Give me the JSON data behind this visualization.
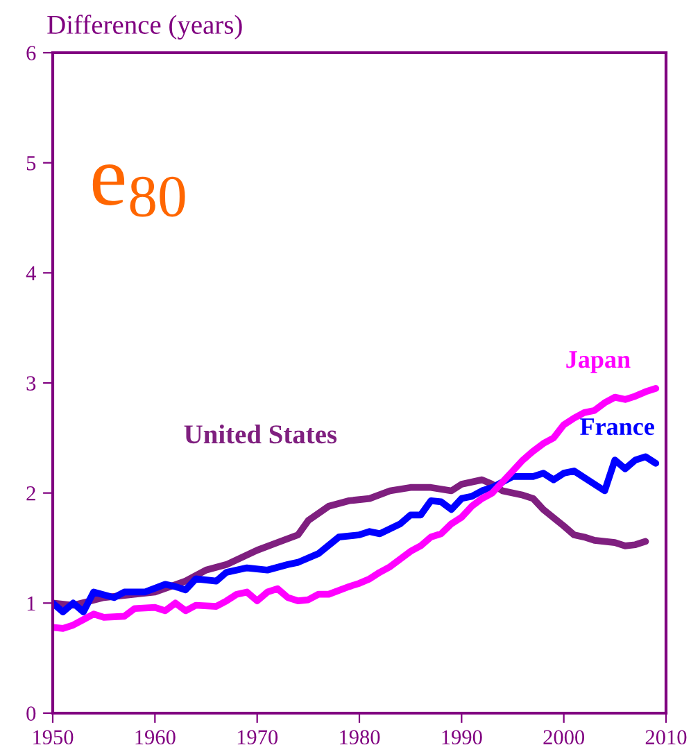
{
  "chart_data": {
    "type": "line",
    "ylabel": "Difference (years)",
    "annotations": [
      "e$_{80}$"
    ],
    "xlim": [
      1950,
      2010
    ],
    "xticks": [
      1950,
      1960,
      1970,
      1980,
      1990,
      2000,
      2010
    ],
    "ylim": [
      0,
      6
    ],
    "yticks": [
      0,
      1,
      2,
      3,
      4,
      5,
      6
    ],
    "grid": false,
    "legend": false,
    "marker": "none",
    "line_style": "solid",
    "series": [
      {
        "name": "United States",
        "color": "#7f1f7f",
        "x": [
          1950,
          1952,
          1955,
          1960,
          1963,
          1965,
          1967,
          1970,
          1972,
          1974,
          1975,
          1977,
          1979,
          1981,
          1983,
          1985,
          1987,
          1989,
          1990,
          1992,
          1993,
          1994,
          1996,
          1997,
          1998,
          2000,
          2001,
          2002,
          2003,
          2005,
          2006,
          2007,
          2008
        ],
        "values": [
          1.0,
          0.98,
          1.05,
          1.1,
          1.2,
          1.3,
          1.35,
          1.48,
          1.55,
          1.62,
          1.75,
          1.88,
          1.93,
          1.95,
          2.02,
          2.05,
          2.05,
          2.02,
          2.08,
          2.12,
          2.08,
          2.02,
          1.98,
          1.95,
          1.85,
          1.7,
          1.62,
          1.6,
          1.57,
          1.55,
          1.52,
          1.53,
          1.56
        ]
      },
      {
        "name": "France",
        "color": "#0000ff",
        "x": [
          1950,
          1951,
          1952,
          1953,
          1954,
          1956,
          1957,
          1959,
          1961,
          1962,
          1963,
          1964,
          1966,
          1967,
          1969,
          1971,
          1973,
          1974,
          1976,
          1978,
          1980,
          1981,
          1982,
          1984,
          1985,
          1986,
          1987,
          1988,
          1989,
          1990,
          1991,
          1992,
          1993,
          1994,
          1995,
          1997,
          1998,
          1999,
          2000,
          2001,
          2003,
          2004,
          2005,
          2006,
          2007,
          2008,
          2009
        ],
        "values": [
          1.0,
          0.92,
          1.0,
          0.92,
          1.1,
          1.05,
          1.1,
          1.1,
          1.17,
          1.15,
          1.12,
          1.22,
          1.2,
          1.28,
          1.32,
          1.3,
          1.35,
          1.37,
          1.45,
          1.6,
          1.62,
          1.65,
          1.63,
          1.72,
          1.8,
          1.8,
          1.93,
          1.92,
          1.85,
          1.95,
          1.97,
          2.02,
          2.05,
          2.1,
          2.15,
          2.15,
          2.18,
          2.12,
          2.18,
          2.2,
          2.08,
          2.02,
          2.3,
          2.22,
          2.3,
          2.33,
          2.27
        ]
      },
      {
        "name": "Japan",
        "color": "#ff00ff",
        "x": [
          1950,
          1951,
          1952,
          1953,
          1954,
          1955,
          1957,
          1958,
          1960,
          1961,
          1962,
          1963,
          1964,
          1966,
          1967,
          1968,
          1969,
          1970,
          1971,
          1972,
          1973,
          1974,
          1975,
          1976,
          1977,
          1979,
          1980,
          1981,
          1982,
          1983,
          1984,
          1985,
          1986,
          1987,
          1988,
          1989,
          1990,
          1991,
          1992,
          1993,
          1994,
          1995,
          1996,
          1997,
          1998,
          1999,
          2000,
          2001,
          2002,
          2003,
          2004,
          2005,
          2006,
          2007,
          2008,
          2009
        ],
        "values": [
          0.78,
          0.77,
          0.8,
          0.85,
          0.9,
          0.87,
          0.88,
          0.95,
          0.96,
          0.93,
          1.0,
          0.93,
          0.98,
          0.97,
          1.02,
          1.08,
          1.1,
          1.02,
          1.1,
          1.13,
          1.05,
          1.02,
          1.03,
          1.08,
          1.08,
          1.15,
          1.18,
          1.22,
          1.28,
          1.33,
          1.4,
          1.47,
          1.52,
          1.6,
          1.63,
          1.72,
          1.78,
          1.88,
          1.95,
          2.0,
          2.1,
          2.2,
          2.3,
          2.38,
          2.45,
          2.5,
          2.62,
          2.68,
          2.73,
          2.75,
          2.82,
          2.87,
          2.85,
          2.88,
          2.92,
          2.95
        ]
      }
    ]
  }
}
